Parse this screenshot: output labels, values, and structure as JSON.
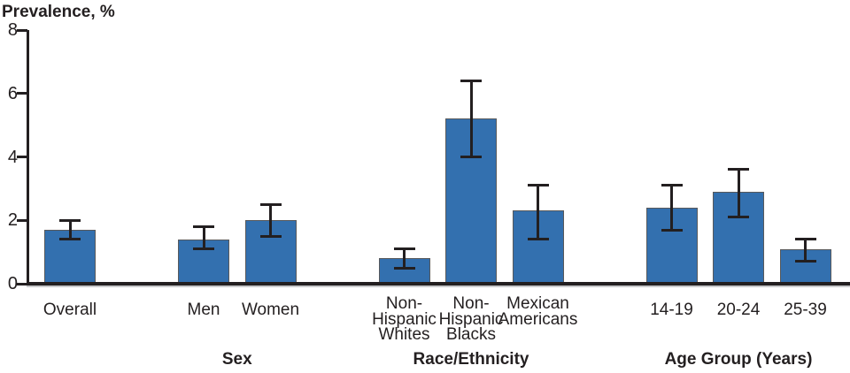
{
  "chart_data": {
    "type": "bar",
    "title": "Prevalence, %",
    "ylabel": "Prevalence, %",
    "xlabel": "",
    "ylim": [
      0,
      8
    ],
    "yticks": [
      0,
      2,
      4,
      6,
      8
    ],
    "grid": false,
    "legend": "none",
    "error_bars": true,
    "bar_color": "#3370AF",
    "bar_border_color": "#58595B",
    "error_bar_color": "#231F20",
    "axis_color": "#231F20",
    "categories": [
      "Overall",
      "Men",
      "Women",
      "Non-Hispanic Whites",
      "Non-Hispanic Blacks",
      "Mexican Americans",
      "14-19",
      "20-24",
      "25-39"
    ],
    "values": [
      1.7,
      1.4,
      2.0,
      0.8,
      5.2,
      2.3,
      2.4,
      2.9,
      1.1
    ],
    "ci_low": [
      1.4,
      1.1,
      1.5,
      0.5,
      4.0,
      1.4,
      1.7,
      2.1,
      0.7
    ],
    "ci_high": [
      2.0,
      1.8,
      2.5,
      1.1,
      6.4,
      3.1,
      3.1,
      3.6,
      1.4
    ],
    "groups": [
      {
        "label": "",
        "bars": [
          {
            "label_lines": [
              "Overall"
            ],
            "value": 1.7,
            "ci_low": 1.4,
            "ci_high": 2.0
          }
        ]
      },
      {
        "label": "Sex",
        "bars": [
          {
            "label_lines": [
              "Men"
            ],
            "value": 1.4,
            "ci_low": 1.1,
            "ci_high": 1.8
          },
          {
            "label_lines": [
              "Women"
            ],
            "value": 2.0,
            "ci_low": 1.5,
            "ci_high": 2.5
          }
        ]
      },
      {
        "label": "Race/Ethnicity",
        "bars": [
          {
            "label_lines": [
              "Non-",
              "Hispanic",
              "Whites"
            ],
            "value": 0.8,
            "ci_low": 0.5,
            "ci_high": 1.1
          },
          {
            "label_lines": [
              "Non-",
              "Hispanic",
              "Blacks"
            ],
            "value": 5.2,
            "ci_low": 4.0,
            "ci_high": 6.4
          },
          {
            "label_lines": [
              "Mexican",
              "Americans"
            ],
            "value": 2.3,
            "ci_low": 1.4,
            "ci_high": 3.1
          }
        ]
      },
      {
        "label": "Age Group (Years)",
        "bars": [
          {
            "label_lines": [
              "14-19"
            ],
            "value": 2.4,
            "ci_low": 1.7,
            "ci_high": 3.1
          },
          {
            "label_lines": [
              "20-24"
            ],
            "value": 2.9,
            "ci_low": 2.1,
            "ci_high": 3.6
          },
          {
            "label_lines": [
              "25-39"
            ],
            "value": 1.1,
            "ci_low": 0.7,
            "ci_high": 1.4
          }
        ]
      }
    ]
  }
}
